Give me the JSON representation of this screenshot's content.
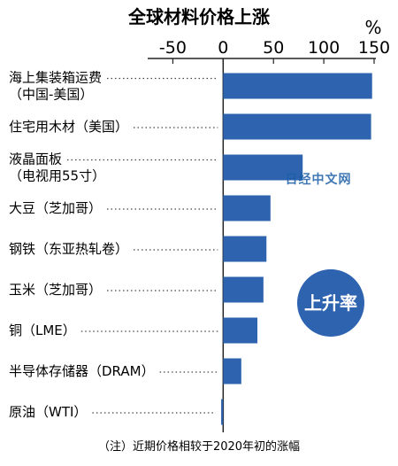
{
  "chart_data": {
    "type": "bar",
    "orientation": "horizontal",
    "title": "全球材料价格上涨",
    "unit": "%",
    "xlim": [
      -75,
      150
    ],
    "xticks": [
      -50,
      0,
      50,
      100,
      150
    ],
    "categories": [
      [
        "海上集装箱运费",
        "（中国-美国）"
      ],
      [
        "住宅用木材（美国）"
      ],
      [
        "液晶面板",
        "（电视用55寸）"
      ],
      [
        "大豆（芝加哥）"
      ],
      [
        "钢铁（东亚热轧卷）"
      ],
      [
        "玉米（芝加哥）"
      ],
      [
        "铜（LME）"
      ],
      [
        "半导体存储器（DRAM）"
      ],
      [
        "原油（WTI）"
      ]
    ],
    "values": [
      148,
      147,
      79,
      47,
      43,
      40,
      34,
      18,
      -2
    ],
    "bar_color": "#2e63b0",
    "legend_badge": "上升率",
    "badge_color": "#2e63b0",
    "note": "（注）近期价格相较于2020年初的涨幅",
    "watermark": "日经中文网"
  }
}
